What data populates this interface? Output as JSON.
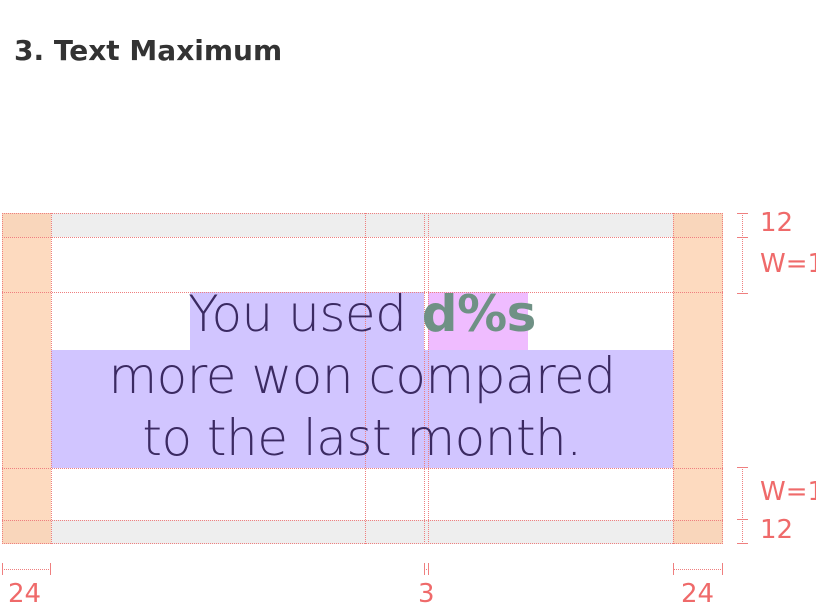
{
  "section": {
    "title": "3. Text Maximum"
  },
  "content": {
    "line1_regular": "You used ",
    "line1_bold": "d%s",
    "line2": "more won compared",
    "line3": "to the last month."
  },
  "dimensions": {
    "padding_top": "12",
    "padding_bottom": "12",
    "spacer_top": "W=1",
    "spacer_bottom": "W=1",
    "margin_left": "24",
    "gap_center": "3",
    "margin_right": "24"
  },
  "colors": {
    "margin_fill": "#fccdaa",
    "padding_fill": "#eeeeee",
    "text_highlight": "#d1c5ff",
    "bold_highlight": "#efbcff",
    "text_color": "#3b2a62",
    "bold_text_color": "#6f9185",
    "guide_color": "#ef7f7f"
  }
}
